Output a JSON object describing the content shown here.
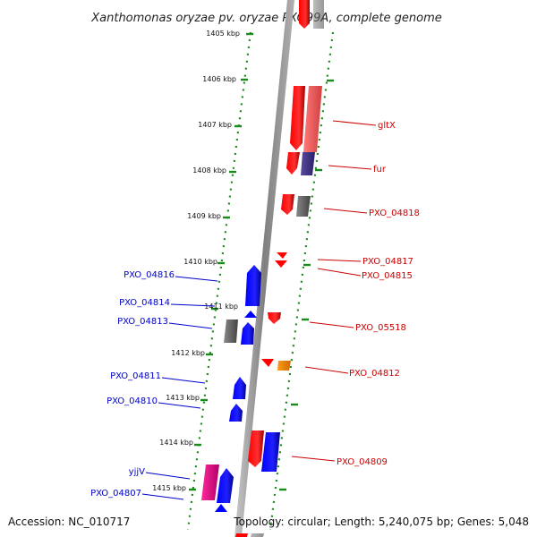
{
  "title": "Xanthomonas oryzae pv. oryzae PXO99A, complete genome",
  "footer": {
    "accession": "Accession: NC_010717",
    "topology": "Topology: circular; Length: 5,240,075 bp; Genes: 5,048"
  },
  "colors": {
    "forward": "#ff0000",
    "reverse": "#0000ff",
    "pseudo": "#777777",
    "rna": "#ff8c00",
    "pink": "#ff1493",
    "fur_overlap": "#4b3c8c",
    "tick": "#1a8a1a",
    "backbone": "#8a8a8a"
  },
  "kbp_ticks": [
    "1405 kbp",
    "1406 kbp",
    "1407 kbp",
    "1408 kbp",
    "1409 kbp",
    "1410 kbp",
    "1411 kbp",
    "1412 kbp",
    "1413 kbp",
    "1414 kbp",
    "1415 kbp"
  ],
  "right_labels": [
    {
      "text": "gltX",
      "color": "#cc0000"
    },
    {
      "text": "fur",
      "color": "#cc0000"
    },
    {
      "text": "PXO_04818",
      "color": "#cc0000"
    },
    {
      "text": "PXO_04817",
      "color": "#cc0000"
    },
    {
      "text": "PXO_04815",
      "color": "#cc0000"
    },
    {
      "text": "PXO_05518",
      "color": "#cc0000"
    },
    {
      "text": "PXO_04812",
      "color": "#cc0000"
    },
    {
      "text": "PXO_04809",
      "color": "#cc0000"
    }
  ],
  "left_labels": [
    {
      "text": "PXO_04816",
      "color": "#0000cc"
    },
    {
      "text": "PXO_04814",
      "color": "#0000cc"
    },
    {
      "text": "PXO_04813",
      "color": "#0000cc"
    },
    {
      "text": "PXO_04811",
      "color": "#0000cc"
    },
    {
      "text": "PXO_04810",
      "color": "#0000cc"
    },
    {
      "text": "yjjV",
      "color": "#0000cc"
    },
    {
      "text": "PXO_04807",
      "color": "#0000cc"
    }
  ]
}
